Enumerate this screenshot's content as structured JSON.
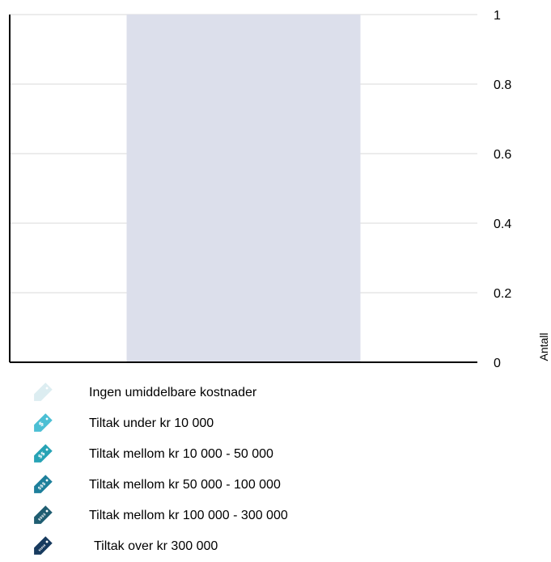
{
  "chart_data": {
    "type": "bar",
    "categories": [
      ""
    ],
    "values": [
      1
    ],
    "ylabel": "Antall",
    "ylim": [
      0,
      1
    ],
    "yticks": [
      0,
      0.2,
      0.4,
      0.6,
      0.8,
      1
    ],
    "ytick_labels": [
      "0",
      "0.2",
      "0.4",
      "0.6",
      "0.8",
      "1"
    ],
    "y_axis_position": "right",
    "grid": true,
    "bar_color": "#dcdfeb",
    "legend_position": "bottom"
  },
  "legend": {
    "items": [
      {
        "label": "Ingen umiddelbare kostnader",
        "color": "#dcedf1",
        "symbol": "",
        "icon": "price-tag-icon"
      },
      {
        "label": "Tiltak under kr 10 000",
        "color": "#4bbfd4",
        "symbol": "$",
        "icon": "price-tag-icon"
      },
      {
        "label": "Tiltak mellom kr 10 000 - 50 000",
        "color": "#27a3b5",
        "symbol": "$$",
        "icon": "price-tag-icon"
      },
      {
        "label": "Tiltak mellom kr 50 000 - 100 000",
        "color": "#1d7f9b",
        "symbol": "$$$",
        "icon": "price-tag-icon"
      },
      {
        "label": "Tiltak mellom kr 100 000 - 300 000",
        "color": "#1f5d71",
        "symbol": "$$$$",
        "icon": "price-tag-icon"
      },
      {
        "label": "Tiltak over kr  300 000",
        "color": "#173a5e",
        "symbol": "$$$$$",
        "icon": "price-tag-icon"
      }
    ]
  }
}
